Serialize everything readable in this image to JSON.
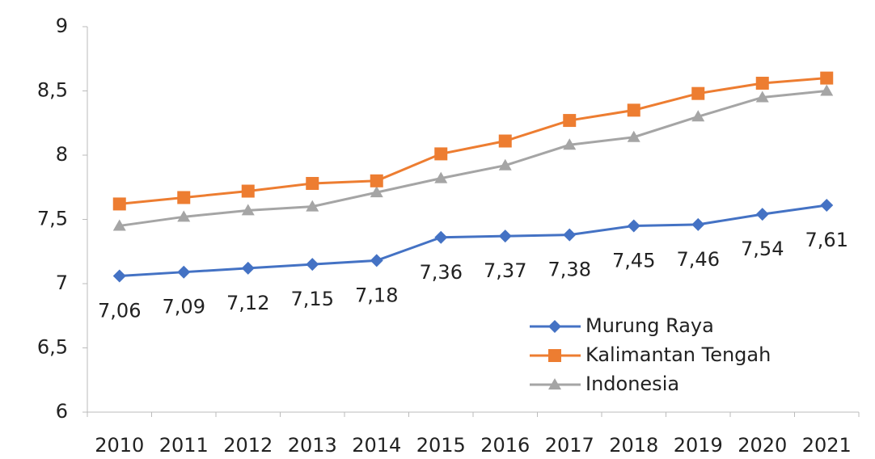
{
  "chart_data": {
    "type": "line",
    "categories": [
      "2010",
      "2011",
      "2012",
      "2013",
      "2014",
      "2015",
      "2016",
      "2017",
      "2018",
      "2019",
      "2020",
      "2021"
    ],
    "series": [
      {
        "name": "Murung Raya",
        "color": "#4472c4",
        "marker": "diamond",
        "values": [
          7.06,
          7.09,
          7.12,
          7.15,
          7.18,
          7.36,
          7.37,
          7.38,
          7.45,
          7.46,
          7.54,
          7.61
        ],
        "value_labels": [
          "7,06",
          "7,09",
          "7,12",
          "7,15",
          "7,18",
          "7,36",
          "7,37",
          "7,38",
          "7,45",
          "7,46",
          "7,54",
          "7,61"
        ]
      },
      {
        "name": "Kalimantan Tengah",
        "color": "#ed7d31",
        "marker": "square",
        "values": [
          7.62,
          7.67,
          7.72,
          7.78,
          7.8,
          8.01,
          8.11,
          8.27,
          8.35,
          8.48,
          8.56,
          8.6
        ]
      },
      {
        "name": "Indonesia",
        "color": "#a5a5a5",
        "marker": "triangle",
        "values": [
          7.45,
          7.52,
          7.57,
          7.6,
          7.71,
          7.82,
          7.92,
          8.08,
          8.14,
          8.3,
          8.45,
          8.5
        ]
      }
    ],
    "ylim": [
      6,
      9
    ],
    "yticks": [
      6,
      {
        "value": 6.5,
        "label": "6,5"
      },
      7,
      {
        "value": 7.5,
        "label": "7,5"
      },
      8,
      {
        "value": 8.5,
        "label": "8,5"
      },
      9
    ],
    "grid": false,
    "legend": "lower right"
  }
}
